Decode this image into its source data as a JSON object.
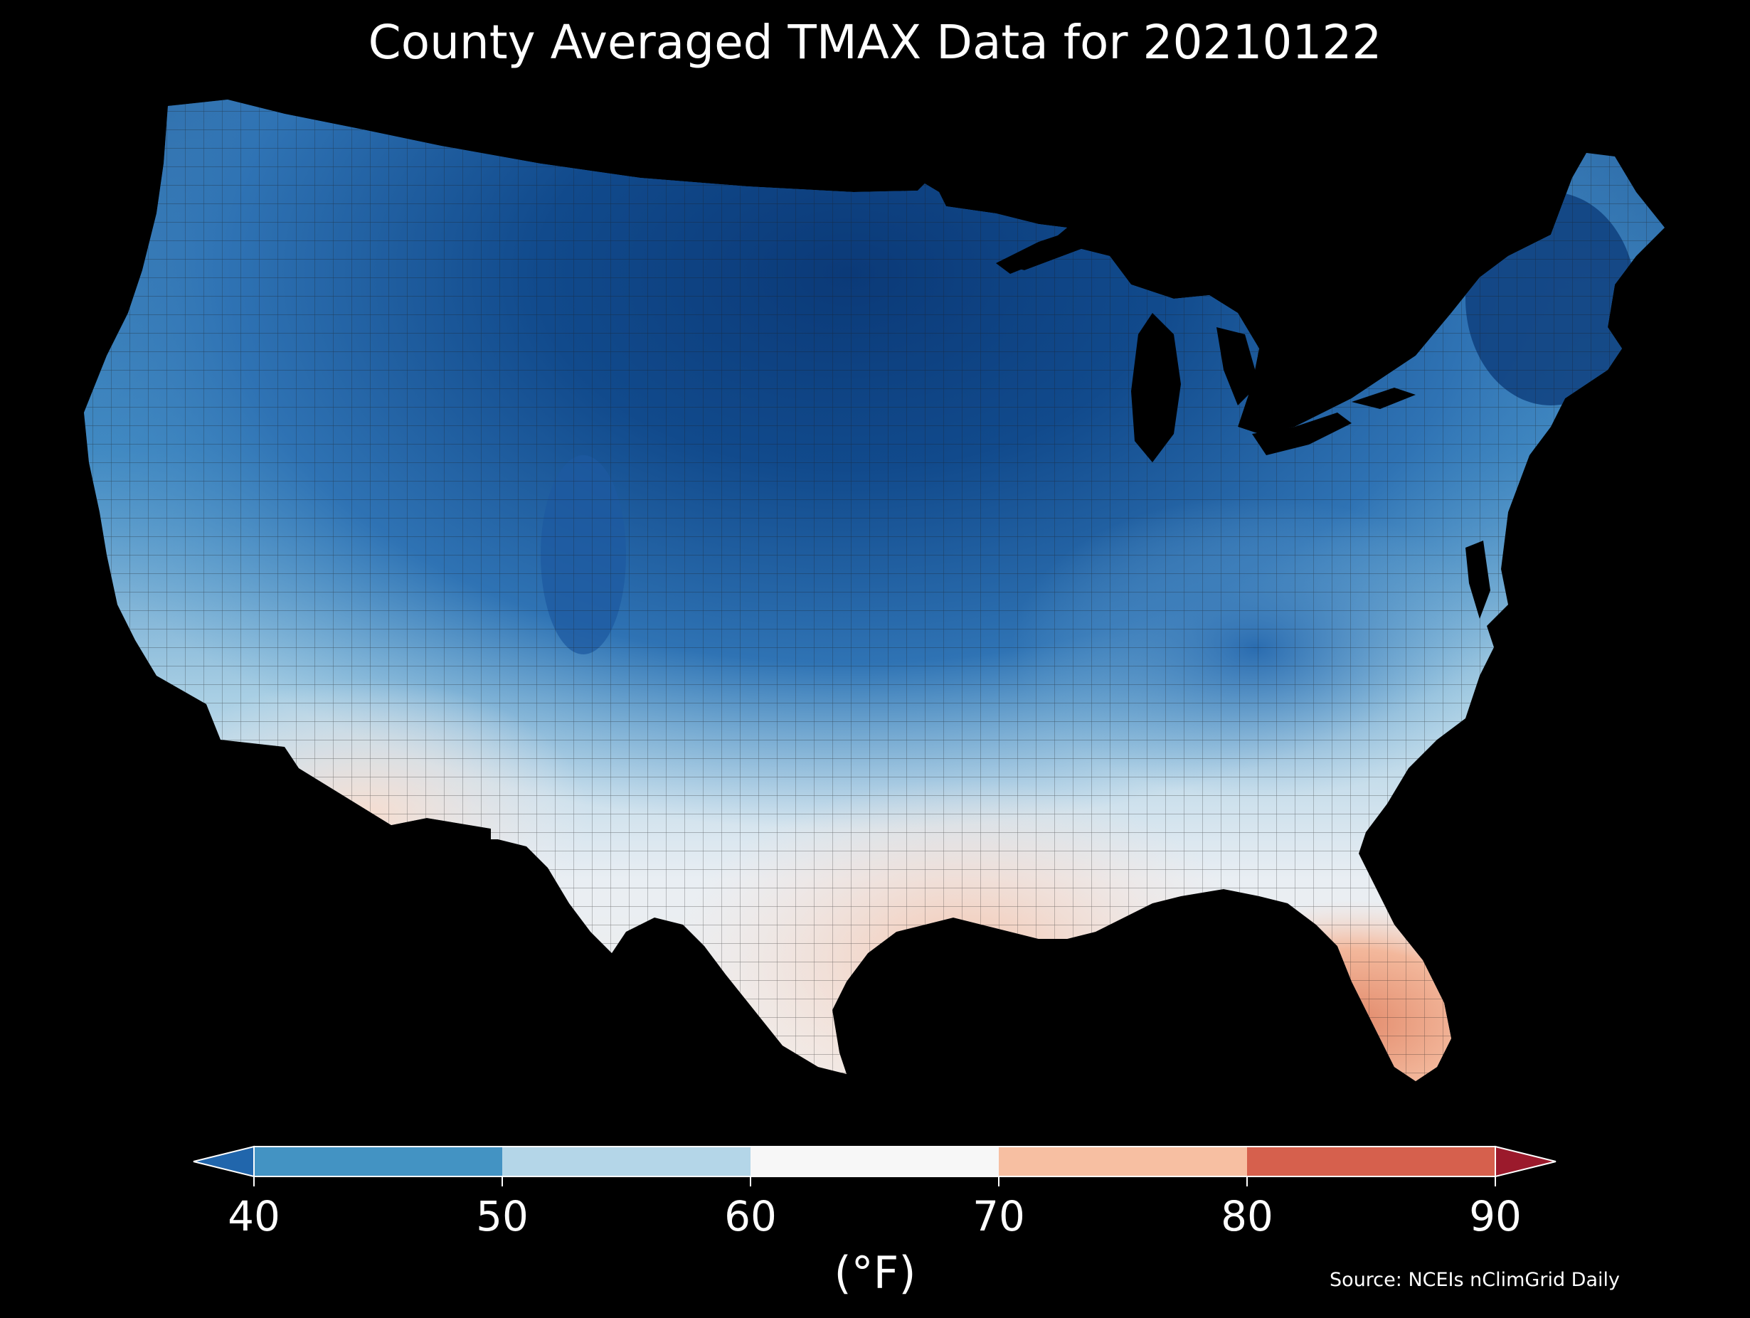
{
  "title": "County Averaged TMAX Data for 20210122",
  "source": "Source: NCEIs nClimGrid Daily",
  "colorbar": {
    "unit_label": "(°F)",
    "ticks": [
      "40",
      "50",
      "60",
      "70",
      "80",
      "90"
    ],
    "bins": [
      {
        "range": [
          null,
          40
        ],
        "color": "#2166ac"
      },
      {
        "range": [
          40,
          50
        ],
        "color": "#4393c3"
      },
      {
        "range": [
          50,
          60
        ],
        "color": "#b4d6e8"
      },
      {
        "range": [
          60,
          70
        ],
        "color": "#f7f7f7"
      },
      {
        "range": [
          70,
          80
        ],
        "color": "#f7bfa2"
      },
      {
        "range": [
          80,
          90
        ],
        "color": "#d6604d"
      },
      {
        "range": [
          90,
          null
        ],
        "color": "#9b1a2c"
      }
    ],
    "extend": "both"
  },
  "map": {
    "region": "Contiguous United States",
    "unit": "county",
    "variable": "TMAX",
    "background": "#000000",
    "county_border_color": "#1a1a1a"
  }
}
